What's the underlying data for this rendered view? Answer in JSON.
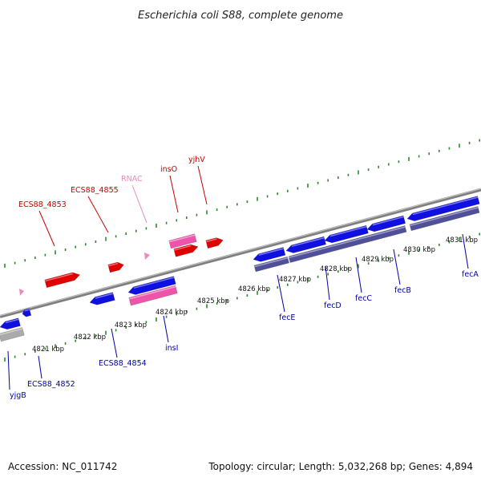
{
  "title": "Escherichia coli S88, complete genome",
  "footer": {
    "accession": "Accession: NC_011742",
    "summary": "Topology: circular; Length: 5,032,268 bp; Genes: 4,894"
  },
  "colors": {
    "backbone": "#7f7f7f",
    "tick": "#2a8a2a",
    "gene_forward": "#e00000",
    "gene_reverse": "#1010e0",
    "rna": "#ee55aa",
    "pseudo": "#aaaaaa",
    "operon": "#50509a",
    "label_forward": "#cc0000",
    "label_reverse": "#0000aa",
    "label_rna": "#ee88bb"
  },
  "scale_labels": [
    "4821 kbp",
    "4822 kbp",
    "4823 kbp",
    "4824 kbp",
    "4825 kbp",
    "4826 kbp",
    "4827 kbp",
    "4828 kbp",
    "4829 kbp",
    "4830 kbp",
    "4831 kbp"
  ],
  "upper_labels": [
    {
      "text": "ECS88_4853",
      "kind": "forward"
    },
    {
      "text": "ECS88_4855",
      "kind": "forward"
    },
    {
      "text": "RNAC",
      "kind": "rna"
    },
    {
      "text": "insO",
      "kind": "forward"
    },
    {
      "text": "yjhV",
      "kind": "forward"
    }
  ],
  "lower_labels": [
    {
      "text": "yjgB",
      "kind": "reverse"
    },
    {
      "text": "ECS88_4852",
      "kind": "reverse"
    },
    {
      "text": "ECS88_4854",
      "kind": "reverse"
    },
    {
      "text": "insI",
      "kind": "reverse"
    },
    {
      "text": "fecE",
      "kind": "reverse"
    },
    {
      "text": "fecD",
      "kind": "reverse"
    },
    {
      "text": "fecC",
      "kind": "reverse"
    },
    {
      "text": "fecB",
      "kind": "reverse"
    },
    {
      "text": "fecA",
      "kind": "reverse"
    }
  ]
}
